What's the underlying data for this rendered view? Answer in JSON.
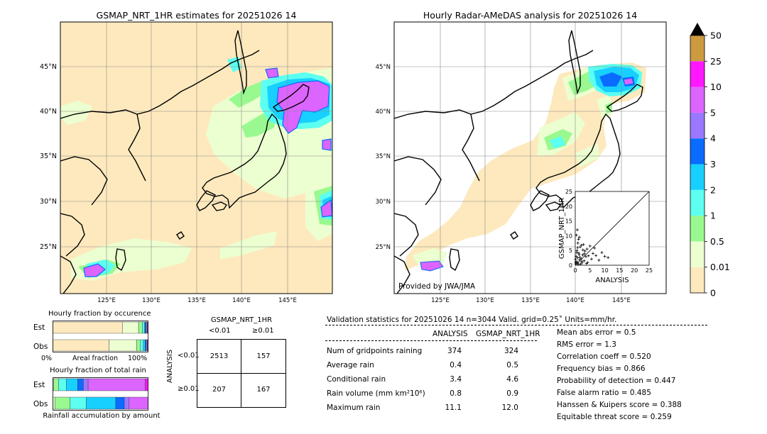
{
  "left_map": {
    "title": "GSMAP_NRT_1HR estimates for 20251026 14",
    "lat_labels": [
      "45°N",
      "40°N",
      "35°N",
      "30°N",
      "25°N"
    ],
    "lon_labels": [
      "125°E",
      "130°E",
      "135°E",
      "140°E",
      "145°E"
    ]
  },
  "right_map": {
    "title": "Hourly Radar-AMeDAS analysis for 20251026 14",
    "lat_labels": [
      "45°N",
      "40°N",
      "35°N",
      "30°N",
      "25°N"
    ],
    "lon_labels": [
      "125°E",
      "130°E",
      "135°E",
      "140°E",
      "145°E"
    ],
    "credit": "Provided by JWA/JMA"
  },
  "colorbar": {
    "levels": [
      "0",
      "0.01",
      "0.5",
      "1",
      "2",
      "3",
      "4",
      "5",
      "10",
      "25",
      "50"
    ],
    "colors": [
      "#fde9bd",
      "#ecffd0",
      "#99f990",
      "#5cfff0",
      "#18d0ff",
      "#0a6cff",
      "#9a78ff",
      "#dc64ff",
      "#ff18ff",
      "#cc9a40"
    ],
    "extend_color": "#000000"
  },
  "inset_scatter": {
    "xlabel": "ANALYSIS",
    "ylabel": "GSMAP_NRT_1HR",
    "ticks": [
      "0",
      "5",
      "10",
      "15",
      "20",
      "25"
    ]
  },
  "occurrence_chart": {
    "title": "Hourly fraction by occurence",
    "rows": [
      "Est",
      "Obs"
    ],
    "axis_left": "0%",
    "axis_mid": "Areal fraction",
    "axis_right": "100%"
  },
  "total_rain_chart": {
    "title": "Hourly fraction of total rain",
    "rows": [
      "Est",
      "Obs"
    ],
    "footer": "Rainfall accumulation by amount"
  },
  "contingency": {
    "title": "GSMAP_NRT_1HR",
    "col_headers": [
      "<0.01",
      "≥0.01"
    ],
    "row_axis": "ANALYSIS",
    "row_headers": [
      "<0.01",
      "≥0.01"
    ],
    "cells": [
      [
        "2513",
        "157"
      ],
      [
        "207",
        "167"
      ]
    ]
  },
  "validation": {
    "header": "Validation statistics for 20251026 14  n=3044 Valid. grid=0.25˚ Units=mm/hr.",
    "col_analysis": "ANALYSIS",
    "col_gsmap": "GSMAP_NRT_1HR",
    "rows": [
      {
        "label": "Num of gridpoints raining",
        "analysis": "374",
        "gsmap": "324"
      },
      {
        "label": "Average rain",
        "analysis": "0.4",
        "gsmap": "0.5"
      },
      {
        "label": "Conditional rain",
        "analysis": "3.4",
        "gsmap": "4.6"
      },
      {
        "label": "Rain volume (mm km²10⁶)",
        "analysis": "0.8",
        "gsmap": "0.9"
      },
      {
        "label": "Maximum rain",
        "analysis": "11.1",
        "gsmap": "12.0"
      }
    ],
    "scores": [
      "Mean abs error =    0.5",
      "RMS error =    1.3",
      "Correlation coeff =  0.520",
      "Frequency bias =  0.866",
      "Probability of detection =  0.447",
      "False alarm ratio =  0.485",
      "Hanssen & Kuipers score =  0.388",
      "Equitable threat score =  0.259"
    ]
  },
  "chart_data": [
    {
      "type": "heatmap",
      "title": "GSMAP_NRT_1HR estimates for 20251026 14",
      "x_range": [
        120,
        149.5
      ],
      "y_range": [
        20,
        50
      ],
      "x_ticks": [
        125,
        130,
        135,
        140,
        145
      ],
      "y_ticks": [
        25,
        30,
        35,
        40,
        45
      ],
      "grid": true
    },
    {
      "type": "heatmap",
      "title": "Hourly Radar-AMeDAS analysis for 20251026 14",
      "x_range": [
        120,
        149.5
      ],
      "y_range": [
        20,
        50
      ],
      "x_ticks": [
        125,
        130,
        135,
        140,
        145
      ],
      "y_ticks": [
        25,
        30,
        35,
        40,
        45
      ],
      "grid": true
    },
    {
      "type": "scatter",
      "xlabel": "ANALYSIS",
      "ylabel": "GSMAP_NRT_1HR",
      "xlim": [
        0,
        25
      ],
      "ylim": [
        0,
        25
      ],
      "points": [
        [
          0.2,
          0.5
        ],
        [
          0.5,
          1.2
        ],
        [
          0.8,
          2.5
        ],
        [
          1.0,
          0.3
        ],
        [
          1.2,
          4.1
        ],
        [
          1.5,
          1.8
        ],
        [
          1.7,
          6.2
        ],
        [
          2.0,
          2.2
        ],
        [
          2.3,
          0.8
        ],
        [
          2.5,
          3.5
        ],
        [
          2.8,
          7.0
        ],
        [
          3.0,
          1.5
        ],
        [
          3.3,
          4.8
        ],
        [
          3.6,
          2.9
        ],
        [
          4.0,
          5.5
        ],
        [
          4.2,
          0.9
        ],
        [
          4.5,
          3.2
        ],
        [
          5.0,
          6.5
        ],
        [
          5.5,
          2.1
        ],
        [
          6.0,
          4.0
        ],
        [
          6.5,
          5.8
        ],
        [
          7.0,
          3.3
        ],
        [
          8.0,
          1.7
        ],
        [
          9.0,
          4.3
        ],
        [
          10.0,
          3.0
        ],
        [
          11.1,
          2.6
        ],
        [
          0.3,
          3.0
        ],
        [
          0.6,
          5.0
        ],
        [
          0.9,
          7.5
        ],
        [
          1.1,
          8.8
        ],
        [
          0.4,
          10.2
        ],
        [
          0.7,
          12.0
        ],
        [
          1.4,
          9.5
        ],
        [
          2.1,
          6.8
        ],
        [
          0.1,
          2.0
        ],
        [
          0.2,
          1.0
        ],
        [
          1.8,
          0.4
        ],
        [
          3.8,
          0.6
        ],
        [
          2.6,
          5.2
        ],
        [
          1.3,
          3.6
        ],
        [
          0.9,
          0.7
        ],
        [
          1.6,
          2.7
        ],
        [
          0.5,
          4.3
        ],
        [
          2.2,
          1.3
        ],
        [
          3.1,
          3.9
        ],
        [
          0.8,
          6.0
        ]
      ]
    },
    {
      "type": "bar",
      "title": "Hourly fraction by occurence",
      "categories": [
        "Est",
        "Obs"
      ],
      "series": [
        {
          "color": "#fde9bd",
          "values": [
            0.73,
            0.59
          ]
        },
        {
          "color": "#ecffd0",
          "values": [
            0.17,
            0.29
          ]
        },
        {
          "color": "#99f990",
          "values": [
            0.04,
            0.04
          ]
        },
        {
          "color": "#5cfff0",
          "values": [
            0.02,
            0.03
          ]
        },
        {
          "color": "#18d0ff",
          "values": [
            0.01,
            0.02
          ]
        },
        {
          "color": "#0a6cff",
          "values": [
            0.01,
            0.01
          ]
        },
        {
          "color": "#9a78ff",
          "values": [
            0.01,
            0.01
          ]
        },
        {
          "color": "#dc64ff",
          "values": [
            0.005,
            0.005
          ]
        },
        {
          "color": "#ff18ff",
          "values": [
            0.005,
            0.005
          ]
        }
      ]
    },
    {
      "type": "bar",
      "title": "Hourly fraction of total rain",
      "categories": [
        "Est",
        "Obs"
      ],
      "series": [
        {
          "color": "#ecffd0",
          "values": [
            0.01,
            0.02
          ]
        },
        {
          "color": "#99f990",
          "values": [
            0.05,
            0.16
          ]
        },
        {
          "color": "#5cfff0",
          "values": [
            0.08,
            0.17
          ]
        },
        {
          "color": "#18d0ff",
          "values": [
            0.12,
            0.31
          ]
        },
        {
          "color": "#0a6cff",
          "values": [
            0.06,
            0.09
          ]
        },
        {
          "color": "#9a78ff",
          "values": [
            0.05,
            0.05
          ]
        },
        {
          "color": "#dc64ff",
          "values": [
            0.6,
            0.2
          ]
        },
        {
          "color": "#ff18ff",
          "values": [
            0.03,
            0.0
          ]
        }
      ]
    }
  ]
}
